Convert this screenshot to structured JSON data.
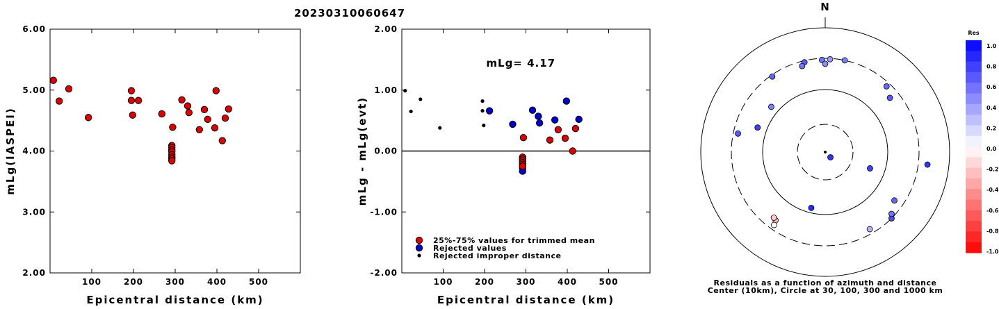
{
  "title": "20230310060647",
  "north_label": "N",
  "colors": {
    "used": "#dd0000",
    "rejected": "#0000cc",
    "improper": "#000000"
  },
  "chart_data": [
    {
      "type": "scatter",
      "id": "left",
      "title": "",
      "xlabel": "Epicentral distance (km)",
      "ylabel": "mLg(IASPEI)",
      "xlim": [
        0,
        600
      ],
      "ylim": [
        2.0,
        6.0
      ],
      "x_ticks": [
        "100",
        "200",
        "300",
        "400",
        "500"
      ],
      "x_tick_values": [
        100,
        200,
        300,
        400,
        500
      ],
      "y_ticks": [
        "2.00",
        "3.00",
        "4.00",
        "5.00",
        "6.00"
      ],
      "y_tick_values": [
        2,
        3,
        4,
        5,
        6
      ],
      "series": [
        {
          "role": "used",
          "points": [
            [
              8,
              5.16
            ],
            [
              22,
              4.82
            ],
            [
              45,
              5.02
            ],
            [
              92,
              4.55
            ],
            [
              195,
              4.99
            ],
            [
              195,
              4.83
            ],
            [
              198,
              4.59
            ],
            [
              212,
              4.83
            ],
            [
              268,
              4.61
            ],
            [
              292,
              4.09
            ],
            [
              292,
              4.06
            ],
            [
              292,
              4.02
            ],
            [
              292,
              3.99
            ],
            [
              292,
              3.94
            ],
            [
              292,
              3.9
            ],
            [
              292,
              3.87
            ],
            [
              292,
              3.84
            ],
            [
              294,
              4.39
            ],
            [
              316,
              4.84
            ],
            [
              330,
              4.74
            ],
            [
              333,
              4.63
            ],
            [
              358,
              4.35
            ],
            [
              370,
              4.68
            ],
            [
              378,
              4.52
            ],
            [
              395,
              4.38
            ],
            [
              398,
              4.99
            ],
            [
              413,
              4.17
            ],
            [
              420,
              4.54
            ],
            [
              428,
              4.69
            ]
          ]
        }
      ]
    },
    {
      "type": "scatter",
      "id": "middle",
      "title": "",
      "xlabel": "Epicentral distance (km)",
      "ylabel": "mLg - mLg(evt)",
      "annotation": "mLg= 4.17",
      "xlim": [
        0,
        600
      ],
      "ylim": [
        -2.0,
        2.0
      ],
      "x_ticks": [
        "100",
        "200",
        "300",
        "400",
        "500"
      ],
      "x_tick_values": [
        100,
        200,
        300,
        400,
        500
      ],
      "y_ticks": [
        "-2.00",
        "-1.00",
        "0.00",
        "1.00",
        "2.00"
      ],
      "y_tick_values": [
        -2,
        -1,
        0,
        1,
        2
      ],
      "reference_line": 0.0,
      "legend": [
        {
          "role": "used",
          "label": "25%-75% values for trimmed mean"
        },
        {
          "role": "rejected",
          "label": "Rejected values"
        },
        {
          "role": "improper",
          "label": "Rejected improper distance"
        }
      ],
      "series": [
        {
          "role": "improper",
          "points": [
            [
              8,
              0.99
            ],
            [
              22,
              0.65
            ],
            [
              45,
              0.85
            ],
            [
              92,
              0.38
            ],
            [
              195,
              0.82
            ],
            [
              195,
              0.66
            ],
            [
              198,
              0.42
            ]
          ]
        },
        {
          "role": "rejected",
          "points": [
            [
              212,
              0.66
            ],
            [
              268,
              0.44
            ],
            [
              316,
              0.67
            ],
            [
              330,
              0.57
            ],
            [
              333,
              0.46
            ],
            [
              370,
              0.51
            ],
            [
              398,
              0.82
            ],
            [
              428,
              0.52
            ],
            [
              292,
              -0.28
            ],
            [
              292,
              -0.33
            ]
          ]
        },
        {
          "role": "used",
          "points": [
            [
              292,
              -0.1
            ],
            [
              292,
              -0.13
            ],
            [
              292,
              -0.16
            ],
            [
              292,
              -0.19
            ],
            [
              292,
              -0.22
            ],
            [
              292,
              -0.25
            ],
            [
              294,
              0.22
            ],
            [
              358,
              0.18
            ],
            [
              378,
              0.35
            ],
            [
              395,
              0.21
            ],
            [
              413,
              0.0
            ],
            [
              420,
              0.37
            ]
          ]
        }
      ]
    },
    {
      "type": "polar",
      "id": "azimuth",
      "caption_lines": [
        "Residuals as a function of azimuth and distance",
        "Center (10km), Circle at 30, 100, 300 and 1000 km"
      ],
      "rings_km": [
        30,
        100,
        300,
        1000
      ],
      "points": [
        {
          "az": 135,
          "dist_km": 8,
          "res": 0.8
        },
        {
          "az": 3,
          "dist_km": 295,
          "res": 0.4
        },
        {
          "az": 12,
          "dist_km": 300,
          "res": 0.5
        },
        {
          "az": 358,
          "dist_km": 290,
          "res": 0.55
        },
        {
          "az": 347,
          "dist_km": 290,
          "res": 0.65
        },
        {
          "az": 360,
          "dist_km": 265,
          "res": 0.45
        },
        {
          "az": 345,
          "dist_km": 270,
          "res": 0.55
        },
        {
          "az": 325,
          "dist_km": 290,
          "res": 0.6
        },
        {
          "az": 310,
          "dist_km": 150,
          "res": 0.5
        },
        {
          "az": 290,
          "dist_km": 160,
          "res": 0.75
        },
        {
          "az": 282,
          "dist_km": 270,
          "res": 0.65
        },
        {
          "az": 43,
          "dist_km": 275,
          "res": 0.6
        },
        {
          "az": 50,
          "dist_km": 240,
          "res": 0.65
        },
        {
          "az": 110,
          "dist_km": 70,
          "res": 0.75
        },
        {
          "az": 194,
          "dist_km": 90,
          "res": 0.85
        },
        {
          "az": 97,
          "dist_km": 510,
          "res": 0.8
        },
        {
          "az": 125,
          "dist_km": 240,
          "res": 0.6
        },
        {
          "az": 135,
          "dist_km": 300,
          "res": 0.7
        },
        {
          "az": 133,
          "dist_km": 280,
          "res": 0.55
        },
        {
          "az": 150,
          "dist_km": 270,
          "res": 0.3
        },
        {
          "az": 216,
          "dist_km": 240,
          "res": -0.3
        },
        {
          "az": 218,
          "dist_km": 233,
          "res": -0.2
        },
        {
          "az": 215,
          "dist_km": 270,
          "res": 0.0
        }
      ],
      "colorbar": {
        "title": "Res",
        "labels": [
          "1.0",
          "0.8",
          "0.6",
          "0.4",
          "0.2",
          "0.0",
          "-0.2",
          "-0.4",
          "-0.6",
          "-0.8",
          "-1.0"
        ]
      }
    }
  ]
}
